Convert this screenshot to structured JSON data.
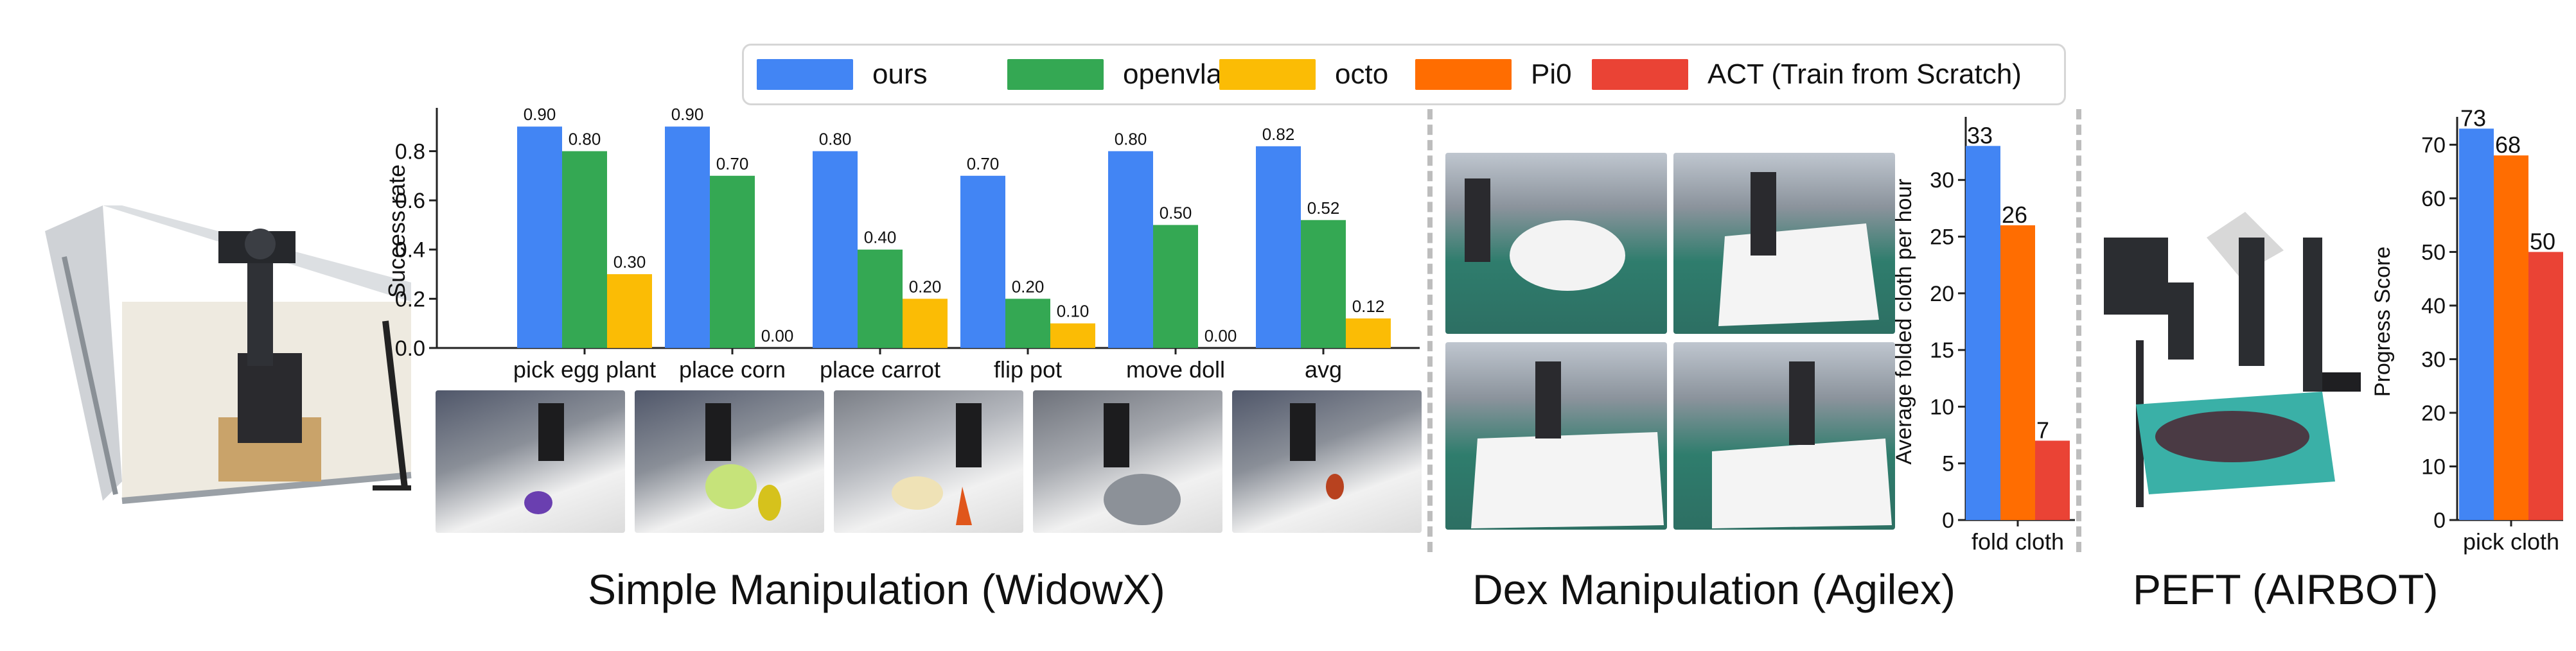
{
  "legend": {
    "items": [
      {
        "label": "ours",
        "color": "#4285F4"
      },
      {
        "label": "openvla",
        "color": "#34A853"
      },
      {
        "label": "octo",
        "color": "#FBBC05"
      },
      {
        "label": "Pi0",
        "color": "#FF6D01"
      },
      {
        "label": "ACT (Train from Scratch)",
        "color": "#EA4335"
      }
    ]
  },
  "sections": {
    "simple": "Simple Manipulation (WidowX)",
    "dex": "Dex Manipulation (Agilex)",
    "peft": "PEFT (AIRBOT)"
  },
  "chart_data": [
    {
      "type": "bar",
      "ylabel": "Success rate",
      "ylim": [
        0,
        0.95
      ],
      "yticks": [
        "0.0",
        "0.2",
        "0.4",
        "0.6",
        "0.8"
      ],
      "categories": [
        "pick egg plant",
        "place corn",
        "place carrot",
        "flip pot",
        "move doll",
        "avg"
      ],
      "series": [
        {
          "name": "ours",
          "color": "#4285F4",
          "values": [
            0.9,
            0.9,
            0.8,
            0.7,
            0.8,
            0.82
          ],
          "labels": [
            "0.90",
            "0.90",
            "0.80",
            "0.70",
            "0.80",
            "0.82"
          ]
        },
        {
          "name": "openvla",
          "color": "#34A853",
          "values": [
            0.8,
            0.7,
            0.4,
            0.2,
            0.5,
            0.52
          ],
          "labels": [
            "0.80",
            "0.70",
            "0.40",
            "0.20",
            "0.50",
            "0.52"
          ]
        },
        {
          "name": "octo",
          "color": "#FBBC05",
          "values": [
            0.3,
            0.0,
            0.2,
            0.1,
            0.0,
            0.12
          ],
          "labels": [
            "0.30",
            "0.00",
            "0.20",
            "0.10",
            "0.00",
            "0.12"
          ]
        }
      ]
    },
    {
      "type": "bar",
      "ylabel": "Average folded cloth per hour",
      "ylim": [
        0,
        35
      ],
      "yticks": [
        "0",
        "5",
        "10",
        "15",
        "20",
        "25",
        "30"
      ],
      "categories": [
        "fold cloth"
      ],
      "series": [
        {
          "name": "ours",
          "color": "#4285F4",
          "values": [
            33
          ],
          "labels": [
            "33"
          ]
        },
        {
          "name": "Pi0",
          "color": "#FF6D01",
          "values": [
            26
          ],
          "labels": [
            "26"
          ]
        },
        {
          "name": "ACT (Train from Scratch)",
          "color": "#EA4335",
          "values": [
            7
          ],
          "labels": [
            "7"
          ]
        }
      ]
    },
    {
      "type": "bar",
      "ylabel": "Progress Score",
      "ylim": [
        0,
        74
      ],
      "yticks": [
        "0",
        "10",
        "20",
        "30",
        "40",
        "50",
        "60",
        "70"
      ],
      "categories": [
        "pick cloth"
      ],
      "series": [
        {
          "name": "ours",
          "color": "#4285F4",
          "values": [
            73
          ],
          "labels": [
            "73"
          ]
        },
        {
          "name": "Pi0",
          "color": "#FF6D01",
          "values": [
            68
          ],
          "labels": [
            "68"
          ]
        },
        {
          "name": "ACT (Train from Scratch)",
          "color": "#EA4335",
          "values": [
            50
          ],
          "labels": [
            "50"
          ]
        }
      ]
    }
  ]
}
